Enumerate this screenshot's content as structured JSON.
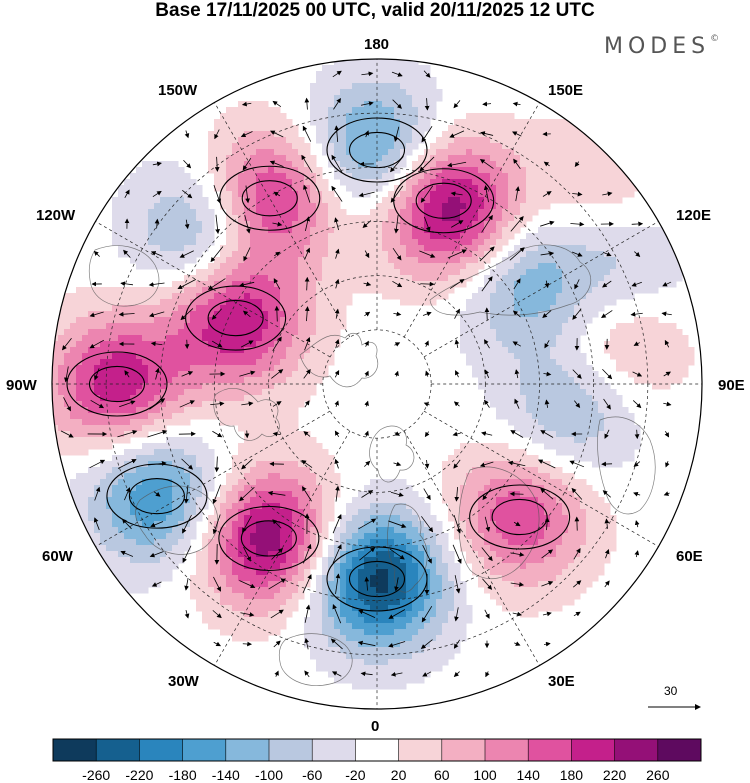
{
  "title": "Base 17/11/2025 00 UTC, valid 20/11/2025 12 UTC",
  "brand": "MODES",
  "brand_mark": "©",
  "longitude_labels": {
    "lon_180": "180",
    "lon_150e": "150E",
    "lon_120e": "120E",
    "lon_90e": "90E",
    "lon_60e": "60E",
    "lon_30e": "30E",
    "lon_0": "0",
    "lon_30w": "30W",
    "lon_60w": "60W",
    "lon_90w": "90W",
    "lon_120w": "120W",
    "lon_150w": "150W"
  },
  "vector_scale": "30",
  "colorbar": {
    "labels": [
      "-260",
      "-220",
      "-180",
      "-140",
      "-100",
      "-60",
      "-20",
      "20",
      "60",
      "100",
      "140",
      "180",
      "220",
      "260"
    ],
    "colors": [
      "#0e3a5c",
      "#15608f",
      "#2a85bd",
      "#4e9fd0",
      "#86b8dc",
      "#b9c8e0",
      "#dedbeb",
      "#ffffff",
      "#f7d4d8",
      "#f3afc2",
      "#ec85b0",
      "#e0529f",
      "#c4208b",
      "#941077",
      "#5e0a5f"
    ]
  },
  "field": {
    "anomalies": [
      {
        "lon": 160,
        "r": 0.6,
        "v": 230
      },
      {
        "lon": 180,
        "r": 0.72,
        "v": -185
      },
      {
        "lon": 147,
        "r": 0.53,
        "v": 60
      },
      {
        "lon": -150,
        "r": 0.66,
        "v": 210
      },
      {
        "lon": -131,
        "r": 0.71,
        "v": -150
      },
      {
        "lon": -115,
        "r": 0.48,
        "v": 225
      },
      {
        "lon": -90,
        "r": 0.8,
        "v": 210
      },
      {
        "lon": -63,
        "r": 0.76,
        "v": -185
      },
      {
        "lon": -35,
        "r": 0.58,
        "v": 260
      },
      {
        "lon": 0,
        "r": 0.6,
        "v": -280
      },
      {
        "lon": 47,
        "r": 0.6,
        "v": 175
      },
      {
        "lon": 82,
        "r": 0.6,
        "v": -110
      },
      {
        "lon": 100,
        "r": 0.76,
        "v": 90
      },
      {
        "lon": 125,
        "r": 0.55,
        "v": -140
      },
      {
        "lon": 115,
        "r": 0.84,
        "v": -80
      },
      {
        "lon": 132,
        "r": 0.92,
        "v": 60
      }
    ]
  }
}
